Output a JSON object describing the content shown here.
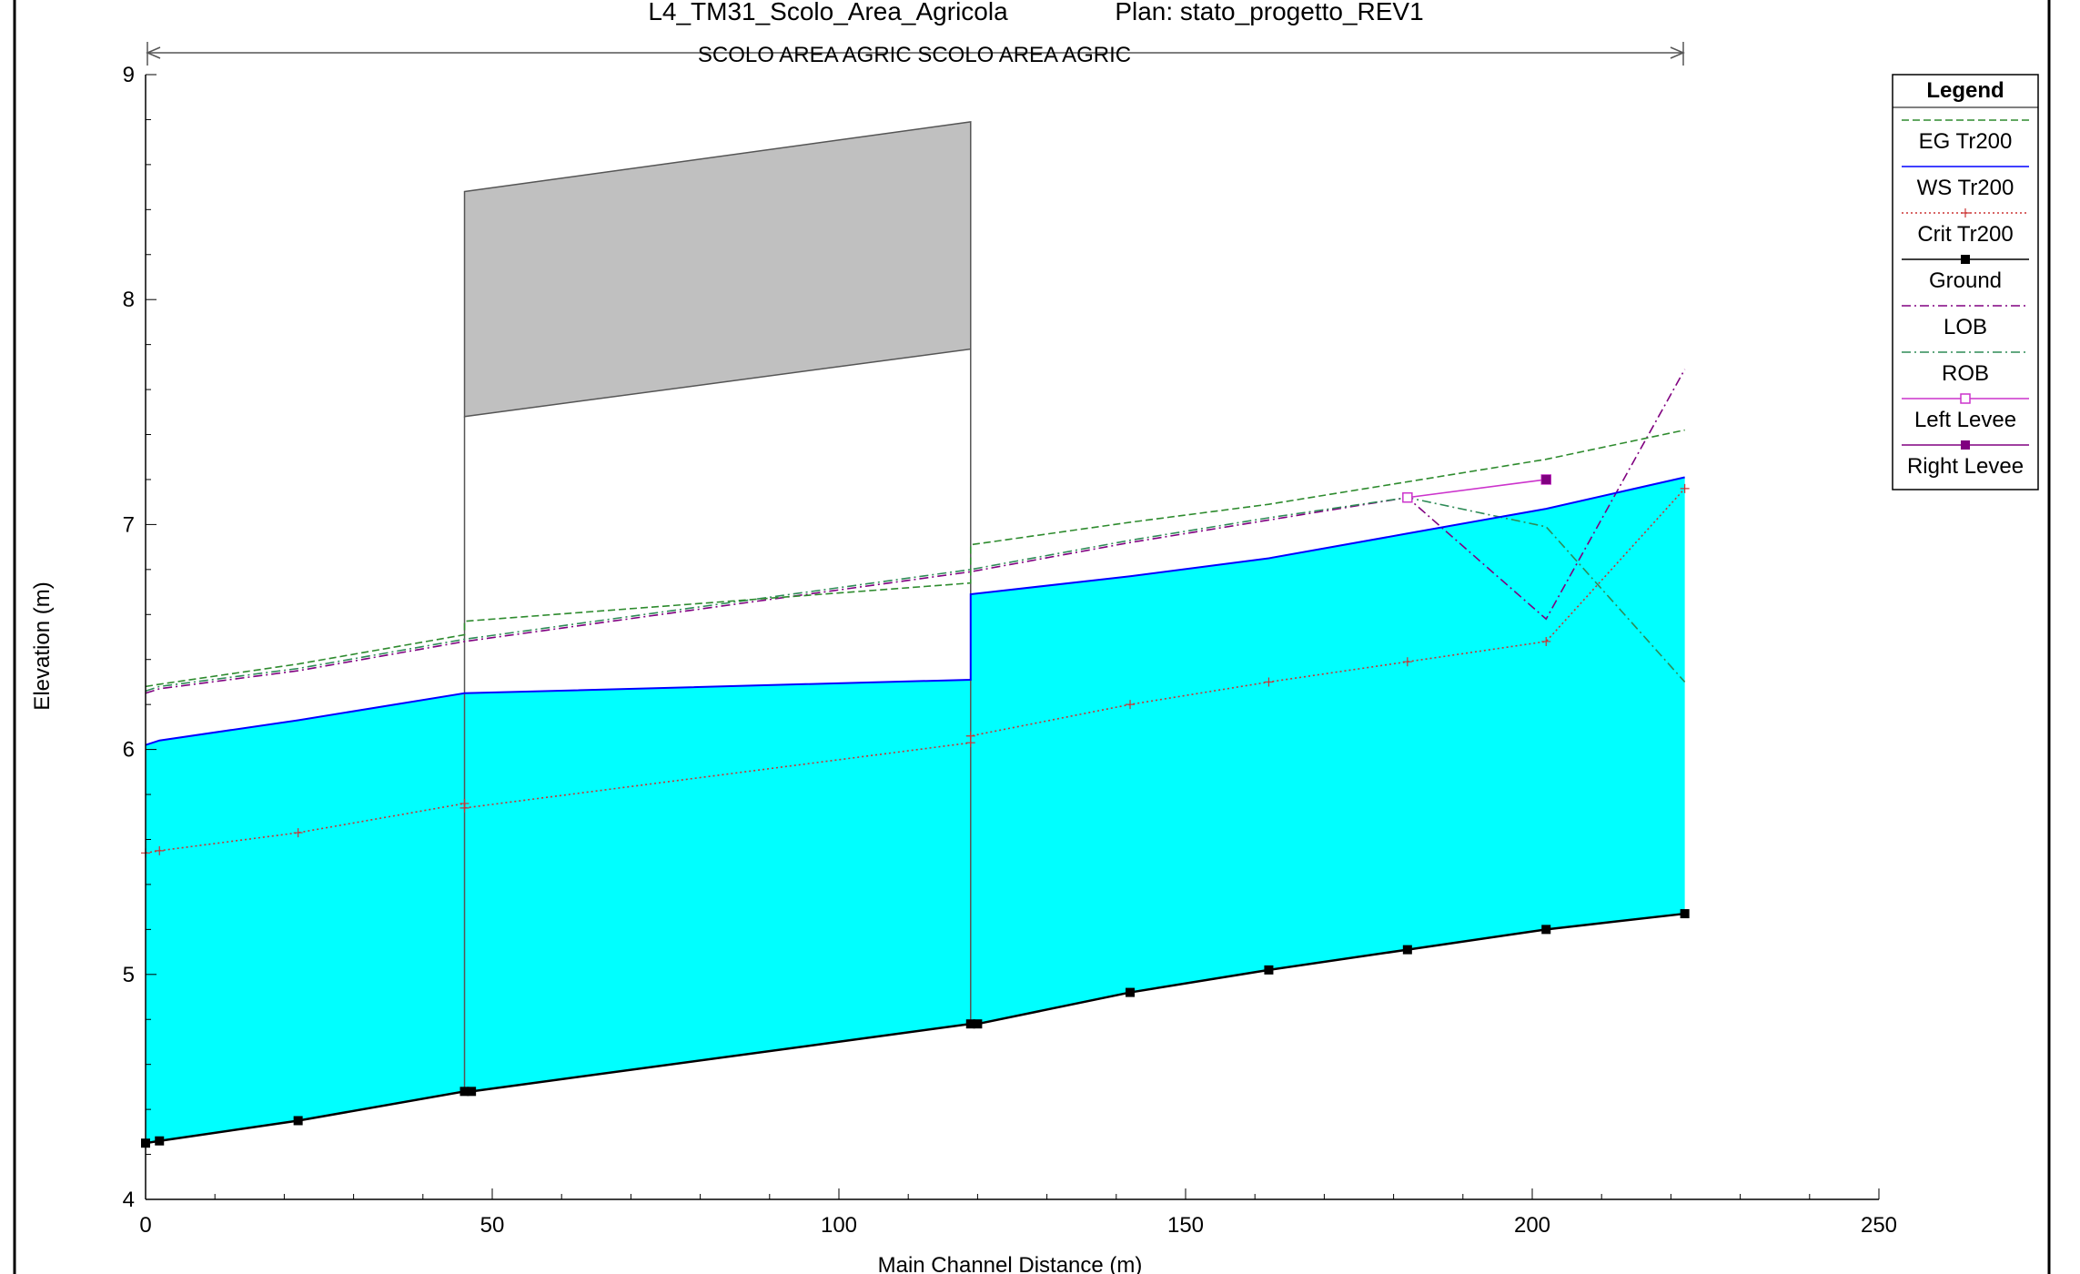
{
  "header": {
    "geometry_name": "L4_TM31_Scolo_Area_Agricola",
    "plan": "Plan: stato_progetto_REV1",
    "reach_label": "SCOLO AREA AGRIC SCOLO AREA AGRIC"
  },
  "legend": {
    "title": "Legend",
    "items": [
      {
        "label": "EG  Tr200",
        "color": "#2e8b2e",
        "style": "dashed",
        "marker": "none"
      },
      {
        "label": "WS  Tr200",
        "color": "#0000ff",
        "style": "solid",
        "marker": "none"
      },
      {
        "label": "Crit  Tr200",
        "color": "#cc3333",
        "style": "dotted",
        "marker": "plus"
      },
      {
        "label": "Ground",
        "color": "#000000",
        "style": "solid",
        "marker": "filled-square"
      },
      {
        "label": "LOB",
        "color": "#800080",
        "style": "dashdot",
        "marker": "none"
      },
      {
        "label": "ROB",
        "color": "#2e8b57",
        "style": "dashdot",
        "marker": "none"
      },
      {
        "label": "Left Levee",
        "color": "#cc33cc",
        "style": "solid",
        "marker": "open-square"
      },
      {
        "label": "Right Levee",
        "color": "#800080",
        "style": "solid",
        "marker": "filled-square"
      }
    ]
  },
  "chart_data": {
    "type": "line",
    "title": "L4_TM31_Scolo_Area_Agricola       Plan: stato_progetto_REV1",
    "xlabel": "Main Channel Distance (m)",
    "ylabel": "Elevation (m)",
    "xlim": [
      0,
      250
    ],
    "ylim": [
      4,
      9
    ],
    "xticks": [
      0,
      50,
      100,
      150,
      200,
      250
    ],
    "yticks": [
      4,
      5,
      6,
      7,
      8,
      9
    ],
    "grid": false,
    "legend_position": "right",
    "water_fill_color": "#00ffff",
    "deck_color": "#c0c0c0",
    "series": [
      {
        "name": "EG  Tr200",
        "x": [
          0,
          2,
          22,
          46,
          46,
          119,
          119,
          142,
          162,
          182,
          202,
          222
        ],
        "y": [
          6.28,
          6.29,
          6.38,
          6.51,
          6.57,
          6.74,
          6.91,
          7.01,
          7.09,
          7.19,
          7.29,
          7.42
        ]
      },
      {
        "name": "WS  Tr200",
        "x": [
          0,
          2,
          22,
          46,
          119,
          119,
          142,
          162,
          182,
          202,
          222
        ],
        "y": [
          6.02,
          6.04,
          6.13,
          6.25,
          6.31,
          6.69,
          6.77,
          6.85,
          6.96,
          7.07,
          7.21
        ]
      },
      {
        "name": "Crit  Tr200",
        "x": [
          0,
          2,
          22,
          46,
          46,
          119,
          119,
          142,
          162,
          182,
          202,
          222
        ],
        "y": [
          5.54,
          5.55,
          5.63,
          5.76,
          5.74,
          6.03,
          6.06,
          6.2,
          6.3,
          6.39,
          6.48,
          7.16
        ]
      },
      {
        "name": "Ground",
        "x": [
          0,
          2,
          22,
          46,
          47,
          119,
          120,
          142,
          162,
          182,
          202,
          222
        ],
        "y": [
          4.25,
          4.26,
          4.35,
          4.48,
          4.48,
          4.78,
          4.78,
          4.92,
          5.02,
          5.11,
          5.2,
          5.27
        ]
      },
      {
        "name": "LOB",
        "x": [
          0,
          2,
          22,
          46,
          119,
          142,
          162,
          182,
          202,
          222
        ],
        "y": [
          6.25,
          6.27,
          6.35,
          6.48,
          6.79,
          6.92,
          7.02,
          7.12,
          6.58,
          7.69
        ]
      },
      {
        "name": "ROB",
        "x": [
          0,
          2,
          22,
          46,
          119,
          142,
          162,
          182,
          202,
          222
        ],
        "y": [
          6.26,
          6.28,
          6.36,
          6.49,
          6.8,
          6.93,
          7.03,
          7.12,
          6.99,
          6.3
        ]
      },
      {
        "name": "Left Levee",
        "x": [
          182,
          202
        ],
        "y": [
          7.12,
          7.2
        ]
      },
      {
        "name": "Right Levee",
        "x": [
          202
        ],
        "y": [
          7.2
        ]
      }
    ],
    "bridge": {
      "x_start": 46,
      "x_end": 119,
      "low_chord": [
        7.48,
        7.78
      ],
      "high_chord": [
        8.48,
        8.79
      ]
    }
  }
}
